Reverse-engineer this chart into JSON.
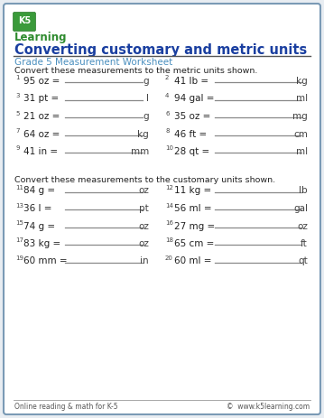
{
  "bg_color": "#e8edf2",
  "page_bg": "#ffffff",
  "border_color": "#7a9ab5",
  "title": "Converting customary and metric units",
  "title_color": "#1a3fa0",
  "subtitle": "Grade 5 Measurement Worksheet",
  "subtitle_color": "#4a8fbf",
  "instruction1": "Convert these measurements to the metric units shown.",
  "instruction2": "Convert these measurements to the customary units shown.",
  "footer_left": "Online reading & math for K-5",
  "footer_right": "©  www.k5learning.com",
  "problems_section1": [
    [
      "1.",
      "95 oz =",
      "g"
    ],
    [
      "2.",
      "41 lb =",
      "kg"
    ],
    [
      "3.",
      "31 pt =",
      "l"
    ],
    [
      "4.",
      "94 gal =",
      "ml"
    ],
    [
      "5.",
      "21 oz =",
      "g"
    ],
    [
      "6.",
      "35 oz =",
      "mg"
    ],
    [
      "7.",
      "64 oz =",
      "kg"
    ],
    [
      "8.",
      "46 ft =",
      "cm"
    ],
    [
      "9.",
      "41 in =",
      "mm"
    ],
    [
      "10.",
      "28 qt =",
      "ml"
    ]
  ],
  "problems_section2": [
    [
      "11.",
      "84 g =",
      "oz"
    ],
    [
      "12.",
      "11 kg =",
      "lb"
    ],
    [
      "13.",
      "36 l =",
      "pt"
    ],
    [
      "14.",
      "56 ml =",
      "gal"
    ],
    [
      "15.",
      "74 g =",
      "oz"
    ],
    [
      "16.",
      "27 mg =",
      "oz"
    ],
    [
      "17.",
      "83 kg =",
      "oz"
    ],
    [
      "18.",
      "65 cm =",
      "ft"
    ],
    [
      "19.",
      "60 mm =",
      "in"
    ],
    [
      "20.",
      "60 ml =",
      "qt"
    ]
  ]
}
